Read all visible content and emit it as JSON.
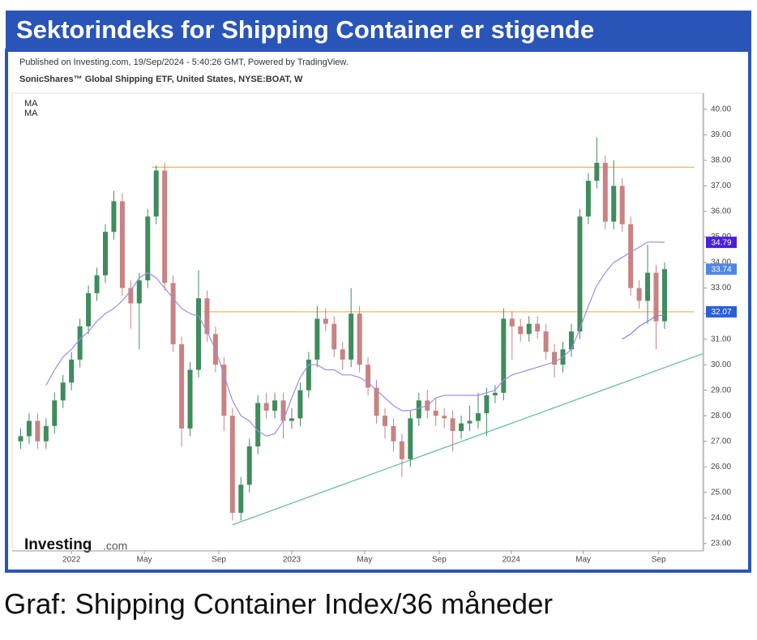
{
  "header": {
    "title": "Sektorindeks for Shipping Container er stigende"
  },
  "chart_data": {
    "type": "candlestick",
    "published": "Published on Investing.com, 19/Sep/2024 - 5:40:26 GMT, Powered by TradingView.",
    "subtitle": "SonicShares™ Global Shipping ETF, United States, NYSE:BOAT, W",
    "logo": [
      "Investing",
      ".com"
    ],
    "up_color": "#3f8c5c",
    "down_color": "#c98282",
    "x": [
      -12,
      -10,
      -8,
      -6,
      -4,
      -2,
      0,
      2,
      4,
      6,
      8,
      10,
      12,
      14,
      16,
      18,
      20,
      22,
      24,
      26,
      28,
      30,
      32,
      34,
      36,
      38,
      40,
      42,
      44,
      46,
      48,
      50,
      52,
      54,
      56,
      58,
      60,
      62,
      64,
      66,
      68,
      70,
      72,
      74,
      76,
      78,
      80,
      82,
      84,
      86,
      88,
      90,
      92,
      94,
      96,
      98,
      100,
      102,
      104,
      106,
      108,
      110,
      112,
      114,
      116,
      118,
      120,
      122,
      124,
      126,
      128,
      130,
      132,
      134,
      136,
      138,
      140
    ],
    "open": [
      27.0,
      27.2,
      27.8,
      27.0,
      27.6,
      28.6,
      29.3,
      30.2,
      31.5,
      32.8,
      33.5,
      35.2,
      36.4,
      33.0,
      32.4,
      33.3,
      35.8,
      37.6,
      33.2,
      30.8,
      27.5,
      29.8,
      32.6,
      31.2,
      30.0,
      28.0,
      24.2,
      25.3,
      26.8,
      28.5,
      28.2,
      28.6,
      27.8,
      27.9,
      29.0,
      30.2,
      31.8,
      31.6,
      30.6,
      30.2,
      32.0,
      30.0,
      29.1,
      28.0,
      27.6,
      27.0,
      26.3,
      27.9,
      28.6,
      28.2,
      28.0,
      27.9,
      27.4,
      27.7,
      27.8,
      28.1,
      28.8,
      28.9,
      31.8,
      31.5,
      31.2,
      31.6,
      31.3,
      30.5,
      30.0,
      30.6,
      31.3,
      35.8,
      37.2,
      37.9,
      35.6,
      37.0,
      35.5,
      33.0,
      32.5,
      33.6,
      31.7
    ],
    "high": [
      27.5,
      28.1,
      28.1,
      27.9,
      28.9,
      29.6,
      30.5,
      31.8,
      33.1,
      33.8,
      35.5,
      36.8,
      36.7,
      33.3,
      33.6,
      36.1,
      37.8,
      37.9,
      33.5,
      31.1,
      30.1,
      33.7,
      32.9,
      31.5,
      30.3,
      28.3,
      25.6,
      27.1,
      28.8,
      28.9,
      28.9,
      28.9,
      28.3,
      29.3,
      30.5,
      32.3,
      32.2,
      31.9,
      30.9,
      33.0,
      32.3,
      30.3,
      29.4,
      28.3,
      27.9,
      27.3,
      28.2,
      28.9,
      29.0,
      28.7,
      28.3,
      28.2,
      28.0,
      28.4,
      28.9,
      29.1,
      29.2,
      32.2,
      32.1,
      31.8,
      31.9,
      31.9,
      31.6,
      30.8,
      30.9,
      31.6,
      36.1,
      37.5,
      38.9,
      38.2,
      38.0,
      37.3,
      35.8,
      33.3,
      34.7,
      33.9,
      34.0
    ],
    "low": [
      26.7,
      26.9,
      26.7,
      26.7,
      27.3,
      28.3,
      29.0,
      29.9,
      31.2,
      32.5,
      33.2,
      34.9,
      32.7,
      31.4,
      30.6,
      33.0,
      35.5,
      32.9,
      30.5,
      26.8,
      27.2,
      29.5,
      30.9,
      29.7,
      27.4,
      23.9,
      23.9,
      25.0,
      26.5,
      27.9,
      27.9,
      27.1,
      27.5,
      27.6,
      28.7,
      29.9,
      31.3,
      30.3,
      29.8,
      29.9,
      29.7,
      28.8,
      27.7,
      27.1,
      26.6,
      25.6,
      26.0,
      27.6,
      27.9,
      27.6,
      27.5,
      26.6,
      27.1,
      27.4,
      27.5,
      27.2,
      28.5,
      28.6,
      30.2,
      30.9,
      30.9,
      31.0,
      30.2,
      29.5,
      29.7,
      30.3,
      31.0,
      35.5,
      36.9,
      35.3,
      35.3,
      35.2,
      32.7,
      32.2,
      31.6,
      30.6,
      31.4
    ],
    "close": [
      27.2,
      27.8,
      27.0,
      27.6,
      28.6,
      29.3,
      30.2,
      31.5,
      32.8,
      33.5,
      35.2,
      36.4,
      33.0,
      32.4,
      33.3,
      35.8,
      37.6,
      33.2,
      30.8,
      27.5,
      29.8,
      32.6,
      31.2,
      30.0,
      28.0,
      24.2,
      25.3,
      26.8,
      28.5,
      28.2,
      28.6,
      27.8,
      27.9,
      29.0,
      30.2,
      31.8,
      31.6,
      30.6,
      30.2,
      32.0,
      30.0,
      29.1,
      28.0,
      27.6,
      27.0,
      26.3,
      27.9,
      28.6,
      28.2,
      28.0,
      27.9,
      27.4,
      27.7,
      27.8,
      28.1,
      28.8,
      28.9,
      31.8,
      31.5,
      31.2,
      31.6,
      31.3,
      30.5,
      30.0,
      30.6,
      31.3,
      35.8,
      37.2,
      37.9,
      35.6,
      37.0,
      35.5,
      33.0,
      32.5,
      33.6,
      31.7,
      33.74
    ],
    "series": [
      {
        "name": "MA",
        "color": "#9a8ee6",
        "values": [
          null,
          null,
          null,
          29.2,
          29.8,
          30.3,
          30.6,
          31.0,
          31.3,
          31.7,
          32.0,
          32.2,
          32.5,
          32.9,
          33.4,
          33.6,
          33.4,
          33.0,
          32.6,
          32.2,
          32.0,
          31.9,
          31.3,
          30.6,
          29.6,
          28.6,
          28.0,
          27.8,
          27.4,
          27.2,
          27.3,
          27.8,
          28.7,
          29.5,
          30.0,
          30.0,
          29.8,
          29.8,
          29.6,
          29.6,
          29.5,
          29.3,
          29.0,
          28.7,
          28.4,
          28.2,
          28.2,
          28.3,
          28.4,
          28.7,
          28.8,
          28.8,
          28.8,
          28.8,
          28.8,
          28.9,
          29.0,
          29.4,
          29.6,
          29.7,
          29.8,
          29.9,
          30.0,
          30.1,
          30.3,
          30.6,
          31.4,
          32.3,
          33.1,
          33.6,
          34.0,
          34.2,
          34.4,
          34.6,
          34.8,
          34.8,
          34.79
        ]
      },
      {
        "name": "MA",
        "color": "#8a80e0",
        "x": [
          130,
          132,
          134,
          136,
          138,
          140
        ],
        "values": [
          31.0,
          31.2,
          31.5,
          31.7,
          31.9,
          31.95
        ]
      }
    ],
    "levels": [
      {
        "value": 37.73,
        "color": "#f2b66a",
        "x": [
          19,
          147
        ]
      },
      {
        "value": 32.07,
        "color": "#f2b66a",
        "x": [
          31,
          147
        ]
      }
    ],
    "trendline": {
      "color": "#72c2a6",
      "x": [
        38,
        149
      ],
      "values": [
        23.73,
        30.43
      ]
    },
    "price_labels": [
      {
        "value": 34.79,
        "color": "#4a1fd8"
      },
      {
        "value": 33.74,
        "color": "#4f86e6"
      },
      {
        "value": 32.07,
        "color": "#2a5fd6"
      }
    ],
    "xlim": [
      -14,
      149
    ],
    "xticks": [
      {
        "value": 0,
        "label": "2022"
      },
      {
        "value": 17.2,
        "label": "May"
      },
      {
        "value": 34.8,
        "label": "Sep"
      },
      {
        "value": 52,
        "label": "2023"
      },
      {
        "value": 69.2,
        "label": "May"
      },
      {
        "value": 86.8,
        "label": "Sep"
      },
      {
        "value": 103.8,
        "label": "2024"
      },
      {
        "value": 120.8,
        "label": "May"
      },
      {
        "value": 138.6,
        "label": "Sep"
      }
    ],
    "ylim": [
      22.71,
      40.63
    ],
    "yticks": [
      {
        "value": 23,
        "label": "23.00"
      },
      {
        "value": 24,
        "label": "24.00"
      },
      {
        "value": 25,
        "label": "25.00"
      },
      {
        "value": 26,
        "label": "26.00"
      },
      {
        "value": 27,
        "label": "27.00"
      },
      {
        "value": 28,
        "label": "28.00"
      },
      {
        "value": 29,
        "label": "29.00"
      },
      {
        "value": 30,
        "label": "30.00"
      },
      {
        "value": 31,
        "label": "31.00"
      },
      {
        "value": 32,
        "label": "32.00"
      },
      {
        "value": 33,
        "label": "33.00"
      },
      {
        "value": 34,
        "label": "34.00"
      },
      {
        "value": 35,
        "label": "35.00"
      },
      {
        "value": 36,
        "label": "36.00"
      },
      {
        "value": 37,
        "label": "37.00"
      },
      {
        "value": 38,
        "label": "38.00"
      },
      {
        "value": 39,
        "label": "39.00"
      },
      {
        "value": 40,
        "label": "40.00"
      }
    ]
  },
  "caption": "Graf: Shipping Container Index/36 måneder"
}
